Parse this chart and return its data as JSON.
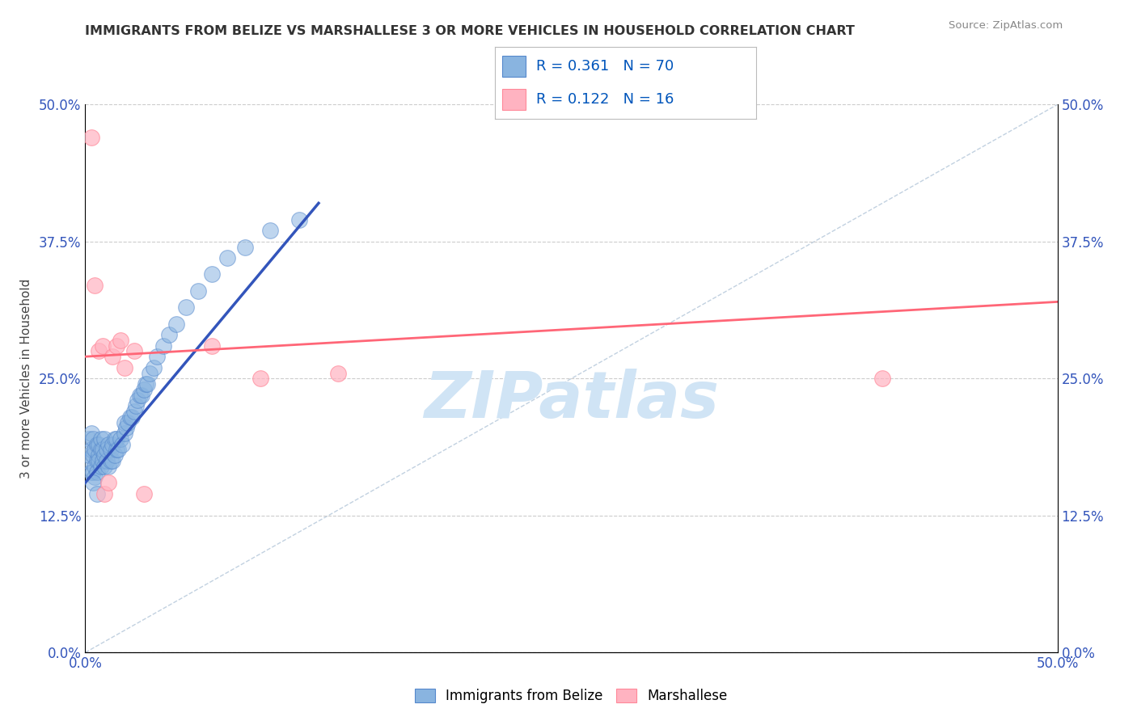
{
  "title": "IMMIGRANTS FROM BELIZE VS MARSHALLESE 3 OR MORE VEHICLES IN HOUSEHOLD CORRELATION CHART",
  "source": "Source: ZipAtlas.com",
  "ylabel": "3 or more Vehicles in Household",
  "xmin": 0.0,
  "xmax": 0.5,
  "ymin": 0.0,
  "ymax": 0.5,
  "xticks": [
    0.0,
    0.0625,
    0.125,
    0.1875,
    0.25,
    0.3125,
    0.375,
    0.4375,
    0.5
  ],
  "yticks": [
    0.0,
    0.125,
    0.25,
    0.375,
    0.5
  ],
  "xtick_labels_sparse": {
    "0.0": "0.0%",
    "0.50": "50.0%"
  },
  "ytick_labels": [
    "0.0%",
    "12.5%",
    "25.0%",
    "37.5%",
    "50.0%"
  ],
  "blue_color": "#89B4E0",
  "pink_color": "#FFB3C1",
  "blue_edge_color": "#5588CC",
  "pink_edge_color": "#FF8899",
  "blue_line_color": "#3355BB",
  "pink_line_color": "#FF6677",
  "diag_line_color": "#BBCCDD",
  "watermark": "ZIPatlas",
  "watermark_color": "#D0E4F5",
  "legend_label1": "Immigrants from Belize",
  "legend_label2": "Marshallese",
  "legend_R_color": "#0055BB",
  "legend_N_color": "#CC2200",
  "background_color": "#FFFFFF",
  "grid_color": "#CCCCCC",
  "blue_x": [
    0.001,
    0.002,
    0.002,
    0.003,
    0.003,
    0.003,
    0.004,
    0.004,
    0.004,
    0.005,
    0.005,
    0.005,
    0.006,
    0.006,
    0.006,
    0.007,
    0.007,
    0.007,
    0.008,
    0.008,
    0.008,
    0.009,
    0.009,
    0.01,
    0.01,
    0.01,
    0.011,
    0.011,
    0.012,
    0.012,
    0.013,
    0.013,
    0.014,
    0.014,
    0.015,
    0.015,
    0.016,
    0.016,
    0.017,
    0.018,
    0.019,
    0.02,
    0.02,
    0.021,
    0.022,
    0.023,
    0.024,
    0.025,
    0.026,
    0.027,
    0.028,
    0.029,
    0.03,
    0.031,
    0.032,
    0.033,
    0.035,
    0.037,
    0.04,
    0.043,
    0.047,
    0.052,
    0.058,
    0.065,
    0.073,
    0.082,
    0.095,
    0.11,
    0.004,
    0.006
  ],
  "blue_y": [
    0.175,
    0.18,
    0.195,
    0.165,
    0.185,
    0.2,
    0.165,
    0.18,
    0.195,
    0.17,
    0.185,
    0.16,
    0.175,
    0.19,
    0.165,
    0.18,
    0.175,
    0.19,
    0.17,
    0.185,
    0.195,
    0.175,
    0.185,
    0.17,
    0.18,
    0.195,
    0.175,
    0.185,
    0.17,
    0.19,
    0.175,
    0.185,
    0.175,
    0.19,
    0.18,
    0.195,
    0.185,
    0.195,
    0.185,
    0.195,
    0.19,
    0.2,
    0.21,
    0.205,
    0.21,
    0.215,
    0.215,
    0.22,
    0.225,
    0.23,
    0.235,
    0.235,
    0.24,
    0.245,
    0.245,
    0.255,
    0.26,
    0.27,
    0.28,
    0.29,
    0.3,
    0.315,
    0.33,
    0.345,
    0.36,
    0.37,
    0.385,
    0.395,
    0.155,
    0.145
  ],
  "pink_x": [
    0.003,
    0.005,
    0.007,
    0.009,
    0.01,
    0.012,
    0.014,
    0.016,
    0.018,
    0.02,
    0.025,
    0.03,
    0.065,
    0.09,
    0.13,
    0.41
  ],
  "pink_y": [
    0.47,
    0.335,
    0.275,
    0.28,
    0.145,
    0.155,
    0.27,
    0.28,
    0.285,
    0.26,
    0.275,
    0.145,
    0.28,
    0.25,
    0.255,
    0.25
  ],
  "blue_line_x0": 0.0,
  "blue_line_y0": 0.155,
  "blue_line_x1": 0.12,
  "blue_line_y1": 0.41,
  "pink_line_x0": 0.0,
  "pink_line_y0": 0.27,
  "pink_line_x1": 0.5,
  "pink_line_y1": 0.32
}
